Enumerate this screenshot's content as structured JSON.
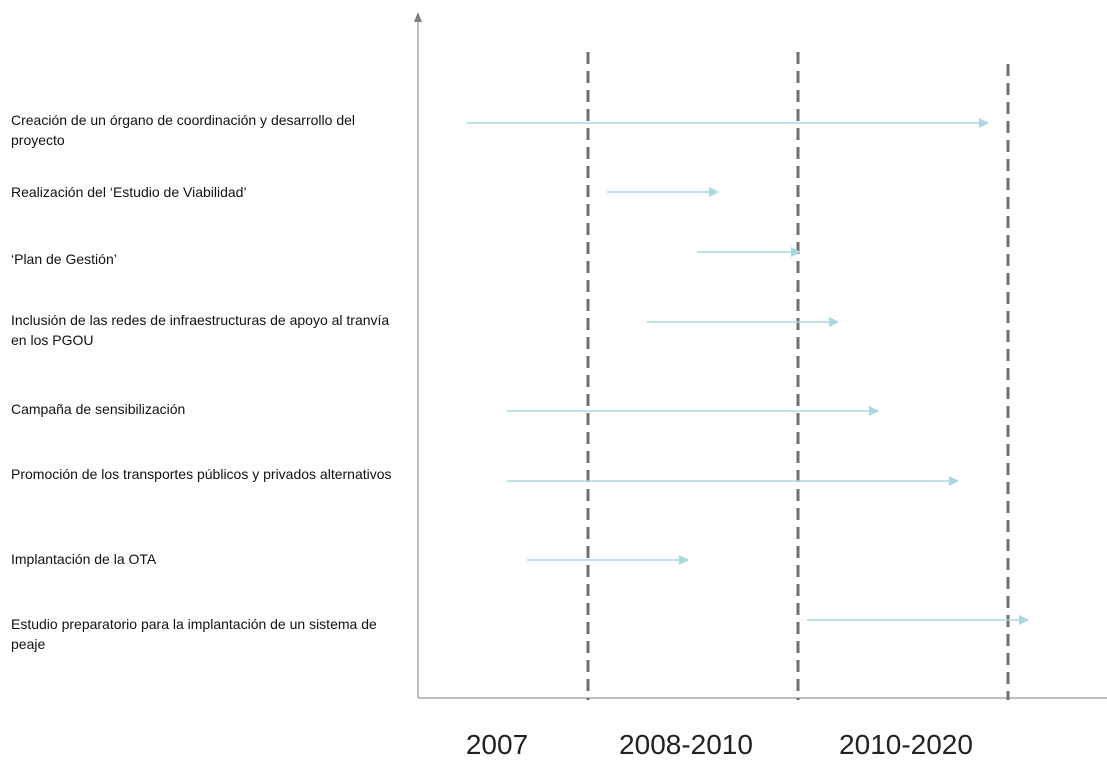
{
  "tasks": [
    {
      "label": "Creación de un órgano de coordinación y desarrollo del proyecto",
      "start": "2007",
      "end": "2010-2020"
    },
    {
      "label": "Realización del ‘Estudio de Viabilidad’",
      "start": "2008-2010",
      "end": "2008-2010"
    },
    {
      "label": "‘Plan de Gestión’",
      "start": "2008-2010",
      "end": "2008-2010"
    },
    {
      "label": "Inclusión de las redes de infraestructuras de apoyo al tranvía en los PGOU",
      "start": "2008-2010",
      "end": "2010-2020"
    },
    {
      "label": "Campaña de sensibilización",
      "start": "2007",
      "end": "2010-2020"
    },
    {
      "label": "Promoción de los transportes públicos y privados alternativos",
      "start": "2007",
      "end": "2010-2020"
    },
    {
      "label": "Implantación de la OTA",
      "start": "2007",
      "end": "2008-2010"
    },
    {
      "label": "Estudio preparatorio para la implantación de un sistema de peaje",
      "start": "2010-2020",
      "end": "2010-2020"
    }
  ],
  "periods": [
    "2007",
    "2008-2010",
    "2010-2020"
  ],
  "colors": {
    "arrow": "#a8d8e0",
    "divider": "#707070",
    "axis": "#808080",
    "text": "#111111"
  }
}
